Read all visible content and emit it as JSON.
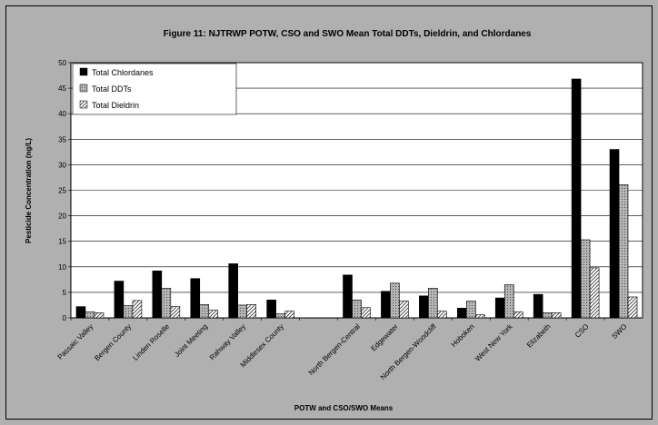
{
  "chart_data": {
    "type": "bar",
    "title": "Figure 11: NJTRWP POTW, CSO and SWO Mean Total DDTs, Dieldrin, and Chlordanes",
    "xlabel": "POTW and CSO/SWO Means",
    "ylabel": "Pesticide Concentration (ng/L)",
    "ylim": [
      0,
      50
    ],
    "yticks": [
      0,
      5,
      10,
      15,
      20,
      25,
      30,
      35,
      40,
      45,
      50
    ],
    "grid": true,
    "legend_position": "top-left",
    "categories": [
      "Passaic Valley",
      "Bergen County",
      "Linden Roselle",
      "Joint Meeting",
      "Rahway Valley",
      "Middlesex County",
      "",
      "North Bergen-Central",
      "Edgewater",
      "North Bergen-Woodcliff",
      "Hoboken",
      "West New York",
      "Elizabeth",
      "CSO",
      "SWO"
    ],
    "series": [
      {
        "name": "Total Chlordanes",
        "color": "#000000",
        "pattern": "solid",
        "values": [
          2.2,
          7.2,
          9.2,
          7.7,
          10.6,
          3.5,
          null,
          8.4,
          5.2,
          4.3,
          1.9,
          3.9,
          4.6,
          46.8,
          33.0
        ]
      },
      {
        "name": "Total DDTs",
        "color": "#a0a0a0",
        "pattern": "dotted",
        "values": [
          1.2,
          2.4,
          5.8,
          2.6,
          2.5,
          0.8,
          null,
          3.5,
          6.8,
          5.8,
          3.3,
          6.5,
          1.0,
          15.3,
          26.1
        ]
      },
      {
        "name": "Total Dieldrin",
        "color": "#ffffff",
        "pattern": "hatched",
        "values": [
          1.0,
          3.4,
          2.2,
          1.5,
          2.6,
          1.3,
          null,
          2.0,
          3.3,
          1.3,
          0.6,
          1.2,
          1.0,
          9.8,
          4.1
        ]
      }
    ]
  }
}
